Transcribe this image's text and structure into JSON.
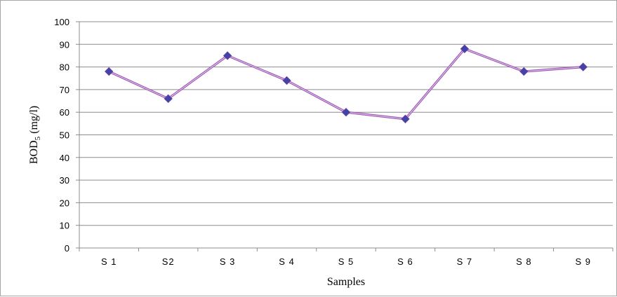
{
  "chart_data": {
    "type": "line",
    "categories": [
      "S 1",
      "S2",
      "S 3",
      "S 4",
      "S 5",
      "S 6",
      "S 7",
      "S 8",
      "S 9"
    ],
    "series": [
      {
        "values": [
          78,
          66,
          85,
          74,
          60,
          57,
          88,
          78,
          80
        ]
      }
    ],
    "xlabel": "Samples",
    "ylabel_main": "BOD",
    "ylabel_sub": "5",
    "ylabel_unit": " (mg/l)",
    "ylim": [
      0,
      100
    ],
    "yticks": [
      0,
      10,
      20,
      30,
      40,
      50,
      60,
      70,
      80,
      90,
      100
    ],
    "grid": true,
    "legend": "none",
    "colors": {
      "line": "#9a4fb3",
      "line_inner": "#e8d6f0",
      "marker": "#3f45a8",
      "marker_edge": "#6a3fa0",
      "grid": "#8c8c8c",
      "axis": "#8c8c8c"
    }
  }
}
